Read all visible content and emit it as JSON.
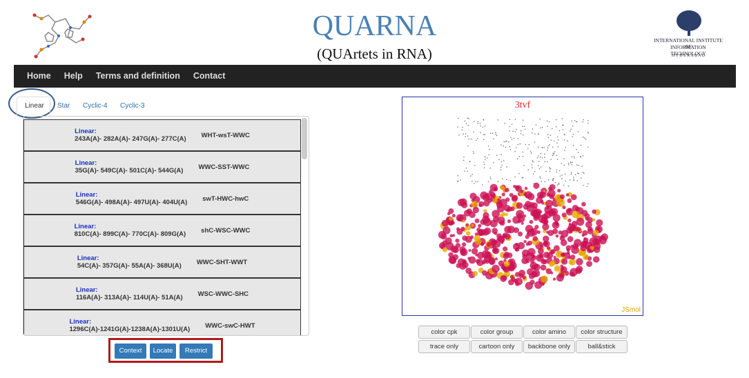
{
  "header": {
    "title": "QUARNA",
    "subtitle": "(QUArtets in RNA)",
    "institute": [
      "INTERNATIONAL INSTITUTE OF",
      "INFORMATION TECHNOLOGY",
      "H Y D E R A B A D"
    ]
  },
  "nav": [
    "Home",
    "Help",
    "Terms and definition",
    "Contact"
  ],
  "tabs": [
    "Linear",
    "Star",
    "Cyclic-4",
    "Cyclic-3"
  ],
  "list": [
    {
      "label": "Linear:",
      "residues": "243A(A)- 282A(A)- 247G(A)- 277C(A)",
      "code": "WHT-wsT-WWC"
    },
    {
      "label": "Linear:",
      "residues": "35G(A)- 549C(A)- 501C(A)- 544G(A)",
      "code": "WWC-SST-WWC"
    },
    {
      "label": "Linear:",
      "residues": "546G(A)- 498A(A)- 497U(A)- 404U(A)",
      "code": "swT-HWC-hwC"
    },
    {
      "label": "Linear:",
      "residues": "810C(A)- 899C(A)- 770C(A)- 809G(A)",
      "code": "shC-WSC-WWC"
    },
    {
      "label": "Linear:",
      "residues": "54C(A)- 357G(A)- 55A(A)- 368U(A)",
      "code": "WWC-SHT-WWT"
    },
    {
      "label": "Linear:",
      "residues": "116A(A)- 313A(A)- 114U(A)- 51A(A)",
      "code": "WSC-WWC-SHC"
    },
    {
      "label": "Linear:",
      "residues": "1296C(A)-1241G(A)-1238A(A)-1301U(A)",
      "code": "WWC-swC-HWT"
    }
  ],
  "actions": [
    "Context",
    "Locate",
    "Restrict"
  ],
  "viewer": {
    "title": "3tvf",
    "brand": "JSmol"
  },
  "view_buttons": [
    "color cpk",
    "color group",
    "color amino",
    "color structure",
    "trace only",
    "cartoon only",
    "backbone only",
    "ball&stick"
  ]
}
